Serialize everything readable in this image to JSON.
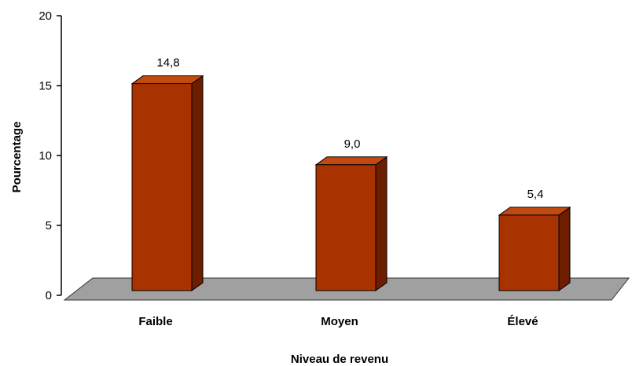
{
  "chart_data": {
    "type": "bar",
    "categories": [
      "Faible",
      "Moyen",
      "Élevé"
    ],
    "values": [
      14.8,
      9.0,
      5.4
    ],
    "data_labels": [
      "14,8",
      "9,0",
      "5,4"
    ],
    "xlabel": "Niveau de revenu",
    "ylabel": "Pourcentage",
    "ylim": [
      0,
      20
    ],
    "yticks": [
      0,
      5,
      10,
      15,
      20
    ],
    "grid": false,
    "style": "3d",
    "colors": {
      "bar_front": "#A83200",
      "bar_side": "#6E1E00",
      "bar_top": "#C24A10",
      "floor": "#A0A0A0"
    }
  }
}
